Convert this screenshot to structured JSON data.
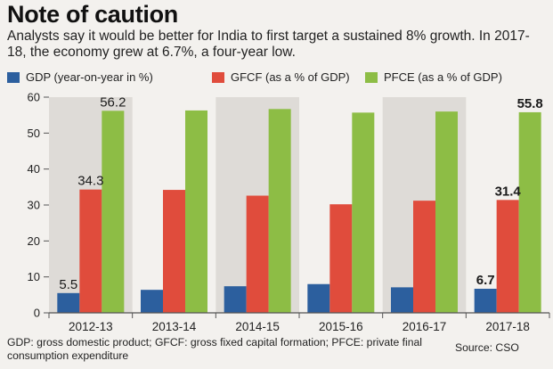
{
  "title": "Note of caution",
  "subtitle": "Analysts say it would be better for India to first target a sustained 8% growth. In 2017-18, the economy grew at 6.7%, a four-year low.",
  "footnote": "GDP: gross domestic product; GFCF: gross fixed capital formation; PFCE: private final consumption expenditure",
  "source": "Source: CSO",
  "colors": {
    "gdp": "#2c5f9e",
    "gfcf": "#e04c3c",
    "pfce": "#8dbd45",
    "band": "#dedbd7",
    "axis": "#555555"
  },
  "chart_data": {
    "type": "bar",
    "title": "Note of caution",
    "xlabel": "",
    "ylabel": "",
    "ylim": [
      0,
      60
    ],
    "yticks": [
      0,
      10,
      20,
      30,
      40,
      50,
      60
    ],
    "categories": [
      "2012-13",
      "2013-14",
      "2014-15",
      "2015-16",
      "2016-17",
      "2017-18"
    ],
    "series": [
      {
        "name": "GDP (year-on-year in %)",
        "key": "gdp",
        "values": [
          5.5,
          6.4,
          7.4,
          8.0,
          7.1,
          6.7
        ]
      },
      {
        "name": "GFCF (as a % of GDP)",
        "key": "gfcf",
        "values": [
          34.3,
          34.2,
          32.6,
          30.2,
          31.2,
          31.4
        ]
      },
      {
        "name": "PFCE (as a % of GDP)",
        "key": "pfce",
        "values": [
          56.2,
          56.3,
          56.7,
          55.7,
          56.0,
          55.8
        ]
      }
    ],
    "data_labels": [
      {
        "series": 0,
        "index": 0,
        "text": "5.5",
        "bold": false
      },
      {
        "series": 1,
        "index": 0,
        "text": "34.3",
        "bold": false
      },
      {
        "series": 2,
        "index": 0,
        "text": "56.2",
        "bold": false
      },
      {
        "series": 0,
        "index": 5,
        "text": "6.7",
        "bold": true
      },
      {
        "series": 1,
        "index": 5,
        "text": "31.4",
        "bold": true
      },
      {
        "series": 2,
        "index": 5,
        "text": "55.8",
        "bold": true
      }
    ],
    "legend_position": "top"
  }
}
